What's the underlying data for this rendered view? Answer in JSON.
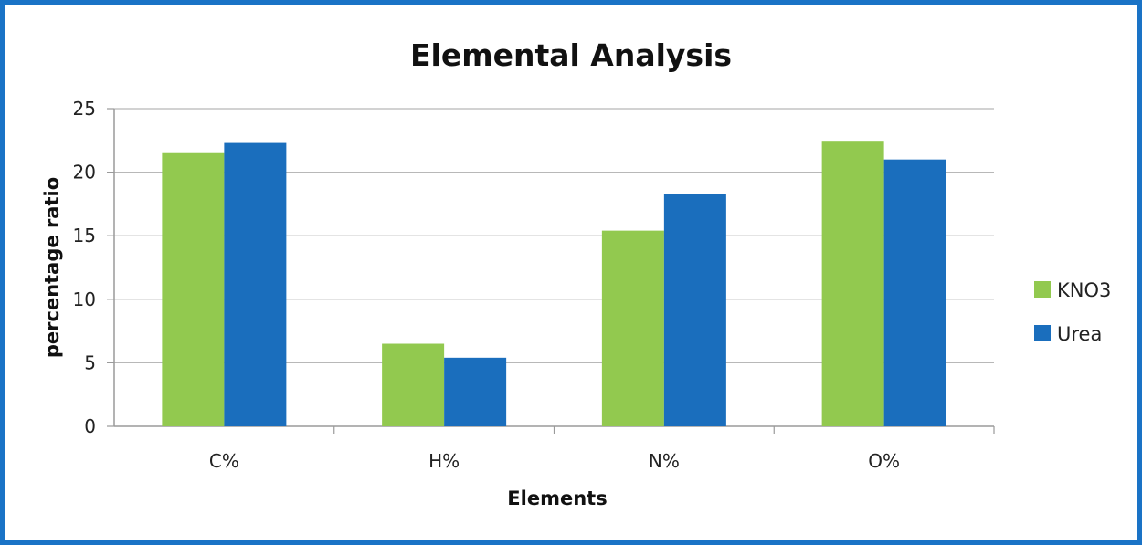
{
  "chart_data": {
    "type": "bar",
    "title": "Elemental Analysis",
    "xlabel": "Elements",
    "ylabel": "percentage ratio",
    "categories": [
      "C%",
      "H%",
      "N%",
      "O%"
    ],
    "series": [
      {
        "name": "KNO3",
        "values": [
          21.5,
          6.5,
          15.4,
          22.4
        ],
        "color": "#92c94f"
      },
      {
        "name": "Urea",
        "values": [
          22.3,
          5.4,
          18.3,
          21.0
        ],
        "color": "#1a6ebd"
      }
    ],
    "ylim": [
      0,
      25
    ],
    "yticks": [
      0,
      5,
      10,
      15,
      20,
      25
    ],
    "grid": true,
    "legend_position": "right",
    "frame_color": "#1a73c6"
  }
}
